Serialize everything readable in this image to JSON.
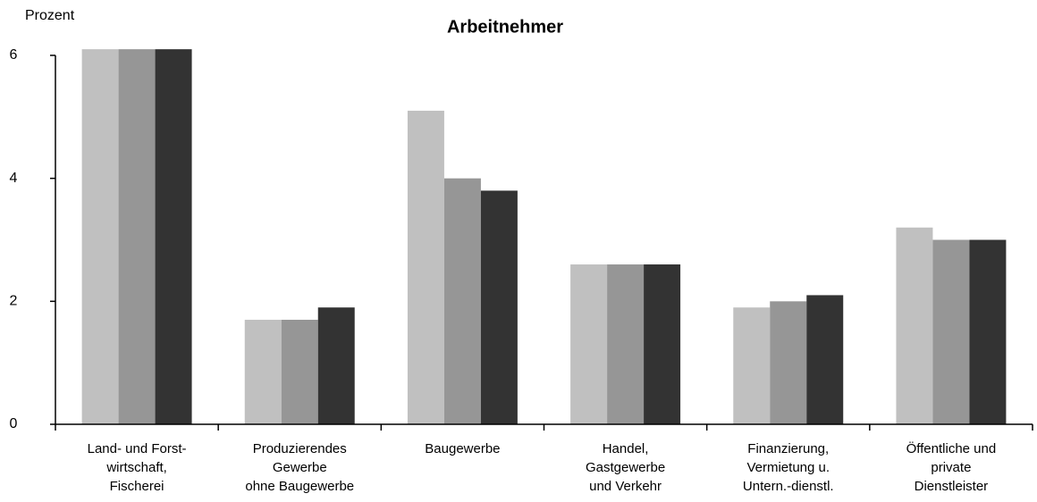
{
  "chart_data": {
    "type": "bar",
    "title": "Arbeitnehmer",
    "y_label": "Prozent",
    "categories": [
      "Land- und Forst-\nwirtschaft,\nFischerei",
      "Produzierendes\nGewerbe\nohne Baugewerbe",
      "Baugewerbe",
      "Handel,\nGastgewerbe\nund Verkehr",
      "Finanzierung,\nVermietung u.\nUntern.-dienstl.",
      "Öffentliche und\nprivate\nDienstleister"
    ],
    "series": [
      {
        "color": "#c0c0c0",
        "values": [
          6.1,
          1.7,
          5.1,
          2.6,
          1.9,
          3.2
        ]
      },
      {
        "color": "#969696",
        "values": [
          6.1,
          1.7,
          4.0,
          2.6,
          2.0,
          3.0
        ]
      },
      {
        "color": "#333333",
        "values": [
          6.1,
          1.9,
          3.8,
          2.6,
          2.1,
          3.0
        ]
      }
    ],
    "ylim": [
      0,
      6
    ],
    "yticks": [
      0,
      2,
      4,
      6
    ],
    "grid": false
  }
}
